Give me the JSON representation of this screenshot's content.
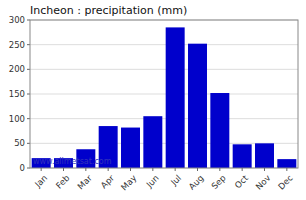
{
  "chart_data": {
    "type": "bar",
    "title": "Incheon : precipitation (mm)",
    "categories": [
      "Jan",
      "Feb",
      "Mar",
      "Apr",
      "May",
      "Jun",
      "Jul",
      "Aug",
      "Sep",
      "Oct",
      "Nov",
      "Dec"
    ],
    "values": [
      20,
      20,
      38,
      85,
      82,
      105,
      285,
      252,
      152,
      48,
      50,
      18
    ],
    "color": "#0000cc",
    "ylim": [
      0,
      300
    ],
    "yticks": [
      0,
      50,
      100,
      150,
      200,
      250,
      300
    ],
    "grid": true,
    "annotations": [
      {
        "text": "www.allmetsat.com",
        "color": "#3333bb"
      }
    ]
  }
}
